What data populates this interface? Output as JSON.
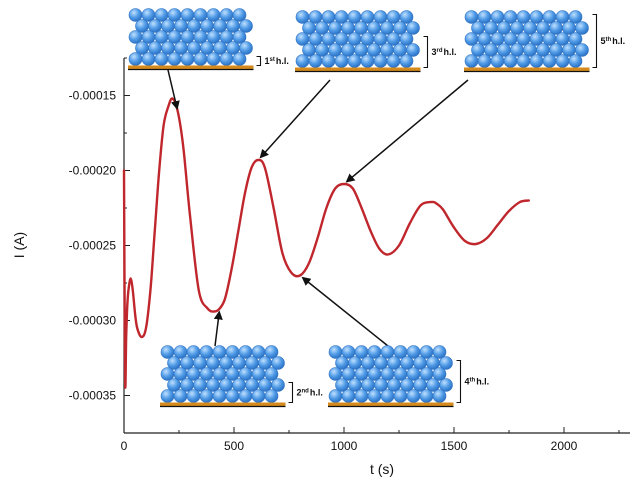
{
  "chart_data": {
    "type": "line",
    "title": "",
    "xlabel": "t (s)",
    "ylabel": "I (A)",
    "xlim": [
      0,
      2300
    ],
    "ylim": [
      -0.000375,
      -0.000125
    ],
    "x_ticks": [
      0,
      500,
      1000,
      1500,
      2000
    ],
    "x_tick_labels": [
      "0",
      "500",
      "1000",
      "1500",
      "2000"
    ],
    "y_ticks": [
      -0.00015,
      -0.0002,
      -0.00025,
      -0.0003,
      -0.00035
    ],
    "y_tick_labels": [
      "-0.00015",
      "-0.00020",
      "-0.00025",
      "-0.00030",
      "-0.00035"
    ],
    "grid": false,
    "line_color": "#c0272d",
    "series": [
      {
        "name": "",
        "x": [
          0,
          5,
          10,
          15,
          20,
          30,
          40,
          50,
          60,
          80,
          100,
          120,
          140,
          160,
          180,
          200,
          220,
          245,
          270,
          300,
          340,
          380,
          410,
          435,
          460,
          490,
          520,
          550,
          580,
          610,
          640,
          680,
          720,
          760,
          800,
          840,
          880,
          920,
          960,
          1000,
          1040,
          1080,
          1120,
          1160,
          1200,
          1250,
          1300,
          1350,
          1400,
          1420,
          1450,
          1500,
          1550,
          1600,
          1650,
          1700,
          1750,
          1800,
          1840
        ],
        "y": [
          -0.0002,
          -0.00034,
          -0.00031,
          -0.00029,
          -0.00028,
          -0.000272,
          -0.00028,
          -0.000295,
          -0.000305,
          -0.000311,
          -0.000305,
          -0.00028,
          -0.00024,
          -0.0002,
          -0.00017,
          -0.000158,
          -0.000152,
          -0.000161,
          -0.000185,
          -0.00023,
          -0.00028,
          -0.000292,
          -0.000294,
          -0.000292,
          -0.000285,
          -0.000265,
          -0.00024,
          -0.000215,
          -0.000198,
          -0.000193,
          -0.000198,
          -0.000225,
          -0.000255,
          -0.000268,
          -0.00027,
          -0.000262,
          -0.000245,
          -0.000225,
          -0.000212,
          -0.000209,
          -0.000212,
          -0.000225,
          -0.00024,
          -0.000252,
          -0.000256,
          -0.00025,
          -0.000235,
          -0.000223,
          -0.000221,
          -0.000222,
          -0.000226,
          -0.000238,
          -0.000247,
          -0.000249,
          -0.000245,
          -0.000236,
          -0.000227,
          -0.000221,
          -0.00022
        ]
      }
    ],
    "insets": [
      {
        "id": "1",
        "num": "1",
        "sup": "st",
        "text": "h.l.",
        "target_x": 245,
        "target_y": -0.000161
      },
      {
        "id": "2",
        "num": "2",
        "sup": "nd",
        "text": "h.l.",
        "target_x": 435,
        "target_y": -0.000292
      },
      {
        "id": "3",
        "num": "3",
        "sup": "rd",
        "text": "h.l.",
        "target_x": 610,
        "target_y": -0.000193
      },
      {
        "id": "4",
        "num": "4",
        "sup": "th",
        "text": "h.l.",
        "target_x": 800,
        "target_y": -0.00027
      },
      {
        "id": "5",
        "num": "5",
        "sup": "th",
        "text": "h.l.",
        "target_x": 1000,
        "target_y": -0.000209
      }
    ]
  }
}
